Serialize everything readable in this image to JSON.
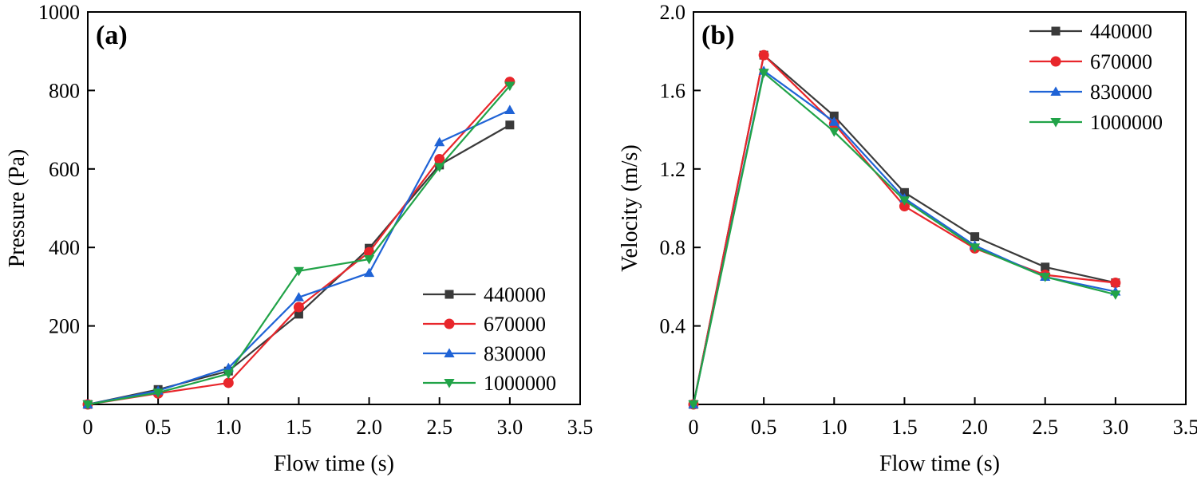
{
  "chart_data": [
    {
      "type": "line",
      "panel_label": "(a)",
      "xlabel": "Flow time (s)",
      "ylabel": "Pressure (Pa)",
      "xlim": [
        0,
        3.5
      ],
      "ylim": [
        0,
        1000
      ],
      "xticks": [
        "0",
        "0.5",
        "1.0",
        "1.5",
        "2.0",
        "2.5",
        "3.0",
        "3.5"
      ],
      "yticks": [
        "200",
        "400",
        "600",
        "800",
        "1000"
      ],
      "x": [
        0,
        0.5,
        1.0,
        1.5,
        2.0,
        2.5,
        3.0
      ],
      "legend_position": "bottom-right",
      "series": [
        {
          "name": "440000",
          "color": "#3a3a3a",
          "marker": "square",
          "values": [
            0,
            38,
            85,
            230,
            398,
            610,
            712
          ]
        },
        {
          "name": "670000",
          "color": "#e8262b",
          "marker": "circle",
          "values": [
            0,
            28,
            55,
            248,
            388,
            625,
            822
          ]
        },
        {
          "name": "830000",
          "color": "#1f63d6",
          "marker": "triangle-up",
          "values": [
            0,
            35,
            93,
            273,
            335,
            668,
            750
          ]
        },
        {
          "name": "1000000",
          "color": "#21a348",
          "marker": "triangle-down",
          "values": [
            0,
            30,
            78,
            340,
            370,
            605,
            812
          ]
        }
      ]
    },
    {
      "type": "line",
      "panel_label": "(b)",
      "xlabel": "Flow time (s)",
      "ylabel": "Velocity (m/s)",
      "xlim": [
        0,
        3.5
      ],
      "ylim": [
        0,
        2.0
      ],
      "xticks": [
        "0",
        "0.5",
        "1.0",
        "1.5",
        "2.0",
        "2.5",
        "3.0",
        "3.5"
      ],
      "yticks": [
        "0.4",
        "0.8",
        "1.2",
        "1.6",
        "2.0"
      ],
      "x": [
        0,
        0.5,
        1.0,
        1.5,
        2.0,
        2.5,
        3.0
      ],
      "legend_position": "top-right",
      "series": [
        {
          "name": "440000",
          "color": "#3a3a3a",
          "marker": "square",
          "values": [
            0,
            1.78,
            1.47,
            1.08,
            0.855,
            0.7,
            0.62
          ]
        },
        {
          "name": "670000",
          "color": "#e8262b",
          "marker": "circle",
          "values": [
            0,
            1.78,
            1.43,
            1.01,
            0.795,
            0.66,
            0.62
          ]
        },
        {
          "name": "830000",
          "color": "#1f63d6",
          "marker": "triangle-up",
          "values": [
            0,
            1.7,
            1.44,
            1.05,
            0.81,
            0.65,
            0.575
          ]
        },
        {
          "name": "1000000",
          "color": "#21a348",
          "marker": "triangle-down",
          "values": [
            0,
            1.69,
            1.39,
            1.04,
            0.8,
            0.65,
            0.56
          ]
        }
      ]
    }
  ]
}
